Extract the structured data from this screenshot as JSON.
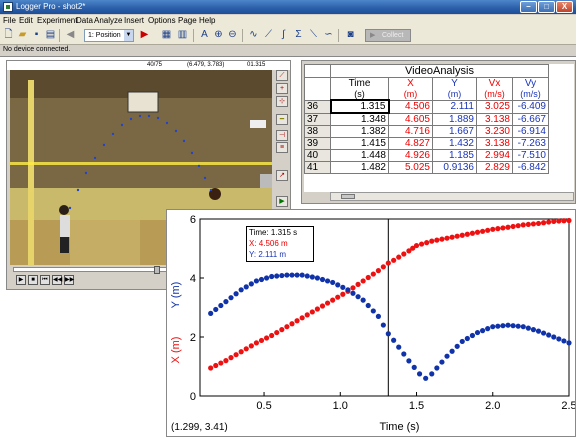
{
  "window": {
    "title": "Logger Pro - shot2*",
    "buttons": {
      "min": "–",
      "max": "□",
      "close": "X"
    }
  },
  "menu": [
    "File",
    "Edit",
    "Experiment",
    "Data",
    "Analyze",
    "Insert",
    "Options",
    "Page",
    "Help"
  ],
  "toolbar": {
    "video_select": "1: Position",
    "collect_label": "Collect"
  },
  "status": "No device connected.",
  "movie": {
    "frame": "40/75",
    "coords": "(6.479, 3.783)",
    "time": "01.315"
  },
  "table": {
    "group_title": "VideoAnalysis",
    "columns": [
      {
        "name": "Time",
        "unit": "(s)"
      },
      {
        "name": "X",
        "unit": "(m)"
      },
      {
        "name": "Y",
        "unit": "(m)"
      },
      {
        "name": "Vx",
        "unit": "(m/s)"
      },
      {
        "name": "Vy",
        "unit": "(m/s)"
      }
    ],
    "rows": [
      {
        "n": "36",
        "time": "1.315",
        "x": "4.506",
        "y": "2.111",
        "vx": "3.025",
        "vy": "-6.409"
      },
      {
        "n": "37",
        "time": "1.348",
        "x": "4.605",
        "y": "1.889",
        "vx": "3.138",
        "vy": "-6.667"
      },
      {
        "n": "38",
        "time": "1.382",
        "x": "4.716",
        "y": "1.667",
        "vx": "3.230",
        "vy": "-6.914"
      },
      {
        "n": "39",
        "time": "1.415",
        "x": "4.827",
        "y": "1.432",
        "vx": "3.138",
        "vy": "-7.263"
      },
      {
        "n": "40",
        "time": "1.448",
        "x": "4.926",
        "y": "1.185",
        "vx": "2.994",
        "vy": "-7.510"
      },
      {
        "n": "41",
        "time": "1.482",
        "x": "5.025",
        "y": "0.9136",
        "vx": "2.829",
        "vy": "-6.842"
      }
    ]
  },
  "graph": {
    "examine": {
      "time": "Time: 1.315 s",
      "x": "X: 4.506 m",
      "y": "Y: 2.111 m"
    },
    "coord_readout": "(1.299, 3.41)",
    "xlabel": "Time (s)",
    "ylabel_x": "X (m)",
    "ylabel_y": "Y (m)",
    "colors": {
      "x": "#ee1111",
      "y": "#1133aa"
    }
  },
  "chart_data": {
    "type": "scatter",
    "title": "",
    "xlabel": "Time (s)",
    "ylabel": "X (m) Y (m)",
    "xlim": [
      0.08,
      2.5
    ],
    "ylim": [
      0,
      6
    ],
    "x_ticks": [
      "0.5",
      "1.0",
      "1.5",
      "2.0",
      "2.5"
    ],
    "y_ticks": [
      "0",
      "2",
      "4",
      "6"
    ],
    "grid": false,
    "examine_line_x": 1.315,
    "series": [
      {
        "name": "X",
        "color": "#ee1111",
        "points": [
          [
            0.15,
            0.95
          ],
          [
            0.25,
            1.2
          ],
          [
            0.35,
            1.5
          ],
          [
            0.45,
            1.8
          ],
          [
            0.55,
            2.05
          ],
          [
            0.65,
            2.35
          ],
          [
            0.75,
            2.65
          ],
          [
            0.85,
            2.95
          ],
          [
            0.95,
            3.25
          ],
          [
            1.05,
            3.55
          ],
          [
            1.15,
            3.9
          ],
          [
            1.25,
            4.25
          ],
          [
            1.315,
            4.506
          ],
          [
            1.35,
            4.6
          ],
          [
            1.45,
            4.92
          ],
          [
            1.5,
            5.1
          ],
          [
            1.6,
            5.25
          ],
          [
            1.7,
            5.35
          ],
          [
            1.8,
            5.45
          ],
          [
            1.9,
            5.55
          ],
          [
            2.0,
            5.65
          ],
          [
            2.1,
            5.72
          ],
          [
            2.2,
            5.8
          ],
          [
            2.3,
            5.85
          ],
          [
            2.4,
            5.92
          ],
          [
            2.5,
            5.95
          ]
        ]
      },
      {
        "name": "Y",
        "color": "#1133aa",
        "points": [
          [
            0.15,
            2.8
          ],
          [
            0.25,
            3.2
          ],
          [
            0.35,
            3.6
          ],
          [
            0.45,
            3.9
          ],
          [
            0.55,
            4.05
          ],
          [
            0.65,
            4.1
          ],
          [
            0.75,
            4.1
          ],
          [
            0.85,
            4.0
          ],
          [
            0.95,
            3.85
          ],
          [
            1.05,
            3.6
          ],
          [
            1.15,
            3.25
          ],
          [
            1.25,
            2.7
          ],
          [
            1.315,
            2.111
          ],
          [
            1.35,
            1.89
          ],
          [
            1.45,
            1.19
          ],
          [
            1.52,
            0.75
          ],
          [
            1.56,
            0.6
          ],
          [
            1.6,
            0.75
          ],
          [
            1.7,
            1.35
          ],
          [
            1.8,
            1.85
          ],
          [
            1.9,
            2.15
          ],
          [
            2.0,
            2.35
          ],
          [
            2.1,
            2.4
          ],
          [
            2.2,
            2.35
          ],
          [
            2.3,
            2.2
          ],
          [
            2.4,
            2.0
          ],
          [
            2.5,
            1.8
          ]
        ]
      }
    ]
  }
}
